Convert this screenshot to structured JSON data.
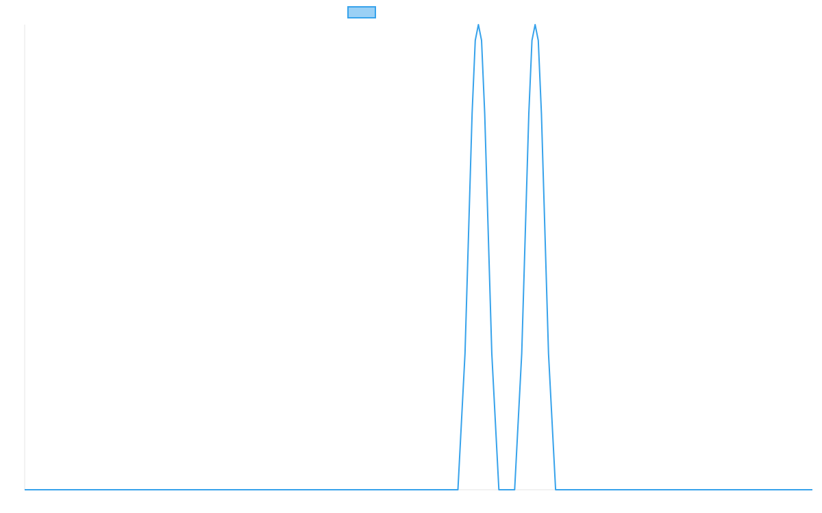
{
  "chart_data": {
    "type": "line",
    "title": "",
    "xlabel": "",
    "ylabel": "",
    "grid": false,
    "legend": {
      "position": "top-center",
      "entries": [
        {
          "label": "",
          "color": "#36a2eb",
          "fill": "#9ad0f5"
        }
      ]
    },
    "xlim": [
      0,
      100
    ],
    "ylim": [
      0,
      1
    ],
    "series": [
      {
        "color": "#36a2eb",
        "points": [
          [
            0,
            0
          ],
          [
            55,
            0
          ],
          [
            55.9,
            0.293
          ],
          [
            56.8,
            0.809
          ],
          [
            57.2,
            0.966
          ],
          [
            57.6,
            1
          ],
          [
            58,
            0.966
          ],
          [
            58.4,
            0.809
          ],
          [
            59.3,
            0.293
          ],
          [
            60.2,
            0
          ],
          [
            62.2,
            0
          ],
          [
            63.1,
            0.293
          ],
          [
            64,
            0.809
          ],
          [
            64.4,
            0.966
          ],
          [
            64.8,
            1
          ],
          [
            65.2,
            0.966
          ],
          [
            65.6,
            0.809
          ],
          [
            66.5,
            0.293
          ],
          [
            67.4,
            0
          ],
          [
            100,
            0
          ]
        ]
      }
    ]
  }
}
